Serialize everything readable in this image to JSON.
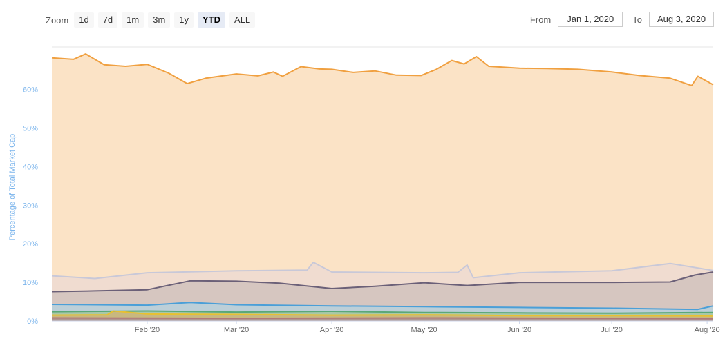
{
  "toolbar": {
    "zoom_label": "Zoom",
    "zoom_buttons": [
      "1d",
      "7d",
      "1m",
      "3m",
      "1y",
      "YTD",
      "ALL"
    ],
    "active_zoom": "YTD",
    "from_label": "From",
    "from_value": "Jan 1, 2020",
    "to_label": "To",
    "to_value": "Aug 3, 2020"
  },
  "chart_data": {
    "type": "area",
    "ylabel": "Percentage of Total Market Cap",
    "xlabel": "",
    "ylim": [
      0,
      71
    ],
    "yticks": [
      "0%",
      "10%",
      "20%",
      "30%",
      "40%",
      "50%",
      "60%"
    ],
    "xlim": [
      "2020-01-01",
      "2020-08-03"
    ],
    "xticks": [
      {
        "date": "2020-02-01",
        "label": "Feb '20"
      },
      {
        "date": "2020-03-01",
        "label": "Mar '20"
      },
      {
        "date": "2020-04-01",
        "label": "Apr '20"
      },
      {
        "date": "2020-05-01",
        "label": "May '20"
      },
      {
        "date": "2020-06-01",
        "label": "Jun '20"
      },
      {
        "date": "2020-07-01",
        "label": "Jul '20"
      },
      {
        "date": "2020-08-01",
        "label": "Aug '20"
      }
    ],
    "grid": true,
    "series": [
      {
        "color": "#f0a040",
        "fill": "#fbe3c6",
        "x": [
          "2020-01-01",
          "2020-01-08",
          "2020-01-12",
          "2020-01-18",
          "2020-01-25",
          "2020-02-01",
          "2020-02-08",
          "2020-02-14",
          "2020-02-20",
          "2020-03-01",
          "2020-03-08",
          "2020-03-13",
          "2020-03-16",
          "2020-03-22",
          "2020-03-28",
          "2020-04-01",
          "2020-04-08",
          "2020-04-15",
          "2020-04-22",
          "2020-04-30",
          "2020-05-05",
          "2020-05-10",
          "2020-05-14",
          "2020-05-18",
          "2020-05-22",
          "2020-06-01",
          "2020-06-10",
          "2020-06-20",
          "2020-07-01",
          "2020-07-10",
          "2020-07-20",
          "2020-07-27",
          "2020-07-29",
          "2020-08-03"
        ],
        "y": [
          68.2,
          67.8,
          69.2,
          66.4,
          66.0,
          66.5,
          64.2,
          61.5,
          62.9,
          64.0,
          63.5,
          64.5,
          63.4,
          65.9,
          65.3,
          65.2,
          64.4,
          64.8,
          63.7,
          63.6,
          65.2,
          67.5,
          66.6,
          68.5,
          66.0,
          65.5,
          65.4,
          65.2,
          64.5,
          63.6,
          62.9,
          61.0,
          63.4,
          61.2
        ]
      },
      {
        "color": "#c8c8d8",
        "fill": "#f0dcd0",
        "x": [
          "2020-01-01",
          "2020-01-15",
          "2020-02-01",
          "2020-03-01",
          "2020-03-24",
          "2020-03-26",
          "2020-04-01",
          "2020-05-01",
          "2020-05-12",
          "2020-05-15",
          "2020-05-17",
          "2020-06-01",
          "2020-07-01",
          "2020-07-20",
          "2020-08-03"
        ],
        "y": [
          11.7,
          11.0,
          12.5,
          13.0,
          13.2,
          15.2,
          12.7,
          12.5,
          12.6,
          14.5,
          11.2,
          12.5,
          13.0,
          14.9,
          13.1
        ]
      },
      {
        "color": "#6b6078",
        "fill": "#d6c6c0",
        "x": [
          "2020-01-01",
          "2020-01-15",
          "2020-02-01",
          "2020-02-15",
          "2020-03-01",
          "2020-03-15",
          "2020-04-01",
          "2020-04-15",
          "2020-05-01",
          "2020-05-15",
          "2020-06-01",
          "2020-07-01",
          "2020-07-20",
          "2020-07-28",
          "2020-08-03"
        ],
        "y": [
          7.6,
          7.8,
          8.1,
          10.4,
          10.3,
          9.8,
          8.4,
          9.0,
          9.9,
          9.2,
          10.0,
          10.0,
          10.1,
          11.9,
          12.7
        ]
      },
      {
        "color": "#4a9fd8",
        "fill": "#bccfd8",
        "x": [
          "2020-01-01",
          "2020-02-01",
          "2020-02-15",
          "2020-03-01",
          "2020-04-01",
          "2020-05-01",
          "2020-06-01",
          "2020-07-01",
          "2020-07-29",
          "2020-08-03"
        ],
        "y": [
          4.3,
          4.1,
          4.8,
          4.2,
          3.9,
          3.7,
          3.5,
          3.3,
          3.0,
          3.9
        ]
      },
      {
        "color": "#5aa878",
        "fill": "#a8c8a8",
        "x": [
          "2020-01-01",
          "2020-02-01",
          "2020-03-01",
          "2020-04-01",
          "2020-05-01",
          "2020-06-01",
          "2020-07-01",
          "2020-08-03"
        ],
        "y": [
          2.4,
          2.6,
          2.3,
          2.5,
          2.2,
          2.1,
          2.0,
          2.2
        ]
      },
      {
        "color": "#e8c030",
        "fill": "#c8b880",
        "x": [
          "2020-01-01",
          "2020-01-19",
          "2020-01-21",
          "2020-02-01",
          "2020-03-01",
          "2020-04-01",
          "2020-05-01",
          "2020-06-01",
          "2020-07-01",
          "2020-08-03"
        ],
        "y": [
          1.5,
          1.6,
          2.6,
          1.8,
          1.7,
          1.5,
          1.6,
          1.4,
          1.4,
          1.3
        ]
      },
      {
        "color": "#b07878",
        "fill": "#b09890",
        "x": [
          "2020-01-01",
          "2020-03-01",
          "2020-05-01",
          "2020-07-01",
          "2020-08-03"
        ],
        "y": [
          0.8,
          0.7,
          0.8,
          0.7,
          0.6
        ]
      }
    ]
  }
}
